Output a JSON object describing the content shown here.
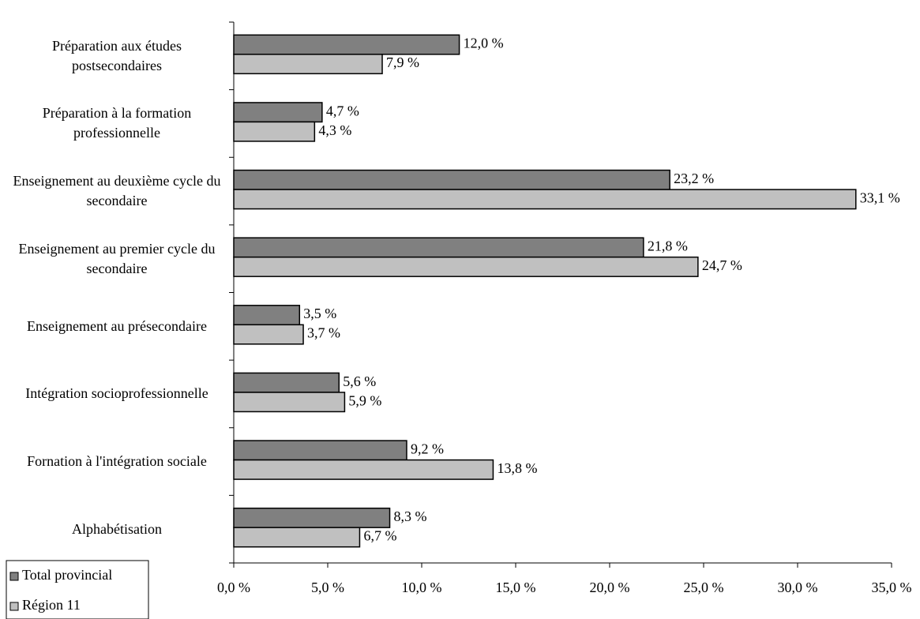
{
  "chart_data": {
    "type": "hbar",
    "categories": [
      "Préparation aux études postsecondaires",
      "Préparation à la formation professionnelle",
      "Enseignement au deuxième cycle du secondaire",
      "Enseignement au premier cycle du secondaire",
      "Enseignement au présecondaire",
      "Intégration socioprofessionnelle",
      "Fornation à l'intégration sociale",
      "Alphabétisation"
    ],
    "series": [
      {
        "name": "Total provincial",
        "color": "#808080",
        "values": [
          12.0,
          4.7,
          23.2,
          21.8,
          3.5,
          5.6,
          9.2,
          8.3
        ],
        "value_labels": [
          "12,0 %",
          "4,7 %",
          "23,2 %",
          "21,8 %",
          "3,5 %",
          "5,6 %",
          "9,2 %",
          "8,3 %"
        ]
      },
      {
        "name": "Région 11",
        "color": "#c0c0c0",
        "values": [
          7.9,
          4.3,
          33.1,
          24.7,
          3.7,
          5.9,
          13.8,
          6.7
        ],
        "value_labels": [
          "7,9 %",
          "4,3 %",
          "33,1 %",
          "24,7 %",
          "3,7 %",
          "5,9 %",
          "13,8 %",
          "6,7 %"
        ]
      }
    ],
    "xlim": [
      0,
      35
    ],
    "xticks": [
      {
        "value": 0,
        "label": "0,0 %"
      },
      {
        "value": 5,
        "label": "5,0 %"
      },
      {
        "value": 10,
        "label": "10,0 %"
      },
      {
        "value": 15,
        "label": "15,0 %"
      },
      {
        "value": 20,
        "label": "20,0 %"
      },
      {
        "value": 25,
        "label": "25,0 %"
      },
      {
        "value": 30,
        "label": "30,0 %"
      },
      {
        "value": 35,
        "label": "35,0 %"
      }
    ],
    "legend": "bottom-left"
  }
}
